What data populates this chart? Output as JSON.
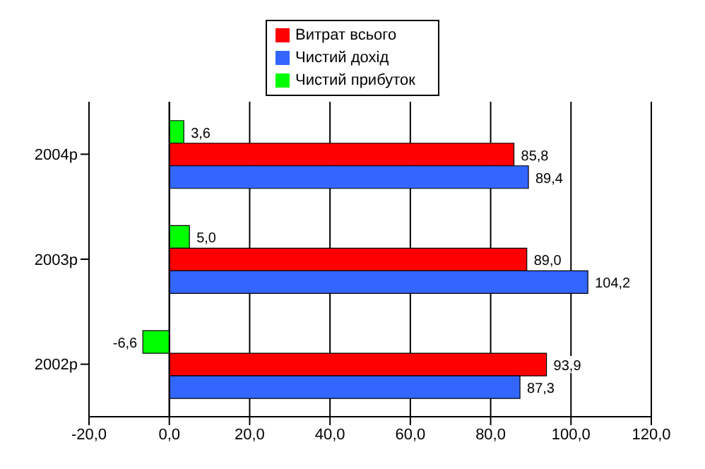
{
  "chart_data": {
    "type": "bar",
    "orientation": "horizontal",
    "categories": [
      "2004р",
      "2003р",
      "2002р"
    ],
    "series": [
      {
        "name": "Чистий прибуток",
        "color": "#00ff00",
        "values": [
          3.6,
          5.0,
          -6.6
        ],
        "value_labels": [
          "3,6",
          "5,0",
          "-6,6"
        ]
      },
      {
        "name": "Витрат всього",
        "color": "#ff0000",
        "values": [
          85.8,
          89.0,
          93.9
        ],
        "value_labels": [
          "85,8",
          "89,0",
          "93,9"
        ]
      },
      {
        "name": "Чистий дохід",
        "color": "#3366ff",
        "values": [
          89.4,
          104.2,
          87.3
        ],
        "value_labels": [
          "89,4",
          "104,2",
          "87,3"
        ]
      }
    ],
    "xlim": [
      -20,
      120
    ],
    "xticks": [
      {
        "value": -20,
        "label": "-20,0"
      },
      {
        "value": 0,
        "label": "0,0"
      },
      {
        "value": 20,
        "label": "20,0"
      },
      {
        "value": 40,
        "label": "40,0"
      },
      {
        "value": 60,
        "label": "60,0"
      },
      {
        "value": 80,
        "label": "80,0"
      },
      {
        "value": 100,
        "label": "100,0"
      },
      {
        "value": 120,
        "label": "120,0"
      }
    ],
    "grid": "x",
    "legend": "top"
  }
}
